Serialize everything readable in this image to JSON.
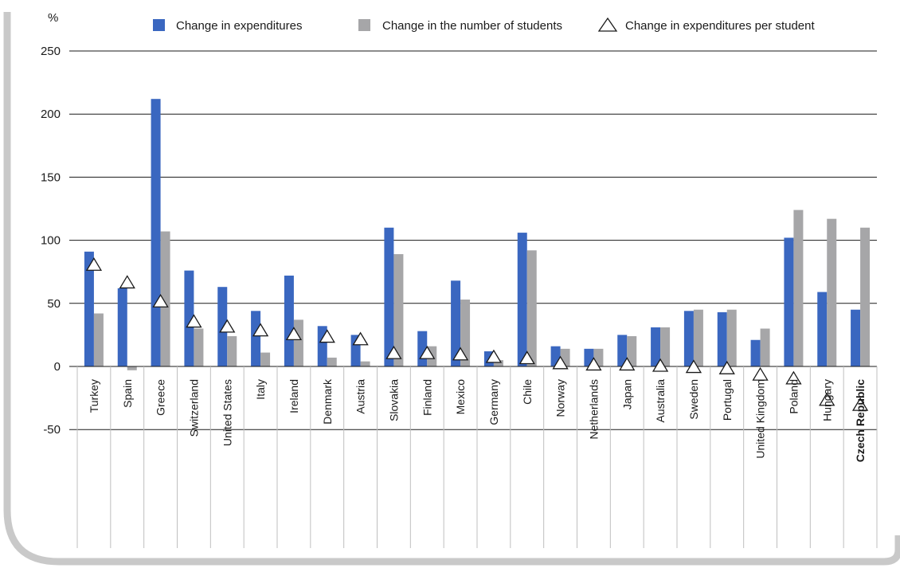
{
  "chart_data": {
    "type": "bar",
    "unit_label": "%",
    "categories": [
      "Turkey",
      "Spain",
      "Greece",
      "Switzerland",
      "United States",
      "Italy",
      "Ireland",
      "Denmark",
      "Austria",
      "Slovakia",
      "Finland",
      "Mexico",
      "Germany",
      "Chile",
      "Norway",
      "Netherlands",
      "Japan",
      "Australia",
      "Sweden",
      "Portugal",
      "United Kingdom",
      "Poland",
      "Hungary",
      "Czech Republic"
    ],
    "highlighted_category": "Czech Republic",
    "series": [
      {
        "name": "Change in expenditures",
        "marker": "bar",
        "color": "#3a67c0",
        "values": [
          91,
          62,
          212,
          76,
          63,
          44,
          72,
          32,
          25,
          110,
          28,
          68,
          12,
          106,
          16,
          14,
          25,
          31,
          44,
          43,
          21,
          102,
          59,
          45
        ]
      },
      {
        "name": "Change in the number of students",
        "marker": "bar",
        "color": "#a6a6a8",
        "values": [
          42,
          -3,
          107,
          30,
          24,
          11,
          37,
          7,
          4,
          89,
          16,
          53,
          5,
          92,
          14,
          14,
          24,
          31,
          45,
          45,
          30,
          124,
          117,
          110
        ]
      },
      {
        "name": "Change in expenditures per student",
        "marker": "triangle",
        "color": "#ffffff",
        "values": [
          80,
          66,
          51,
          35,
          31,
          28,
          25,
          23,
          21,
          10,
          10,
          9,
          7,
          6,
          2,
          1,
          1,
          0,
          -1,
          -2,
          -7,
          -10,
          -27,
          -31
        ]
      }
    ],
    "yticks": [
      -50,
      0,
      50,
      100,
      150,
      200,
      250
    ],
    "ylim": [
      -50,
      250
    ],
    "grid": true,
    "legend_position": "top"
  }
}
